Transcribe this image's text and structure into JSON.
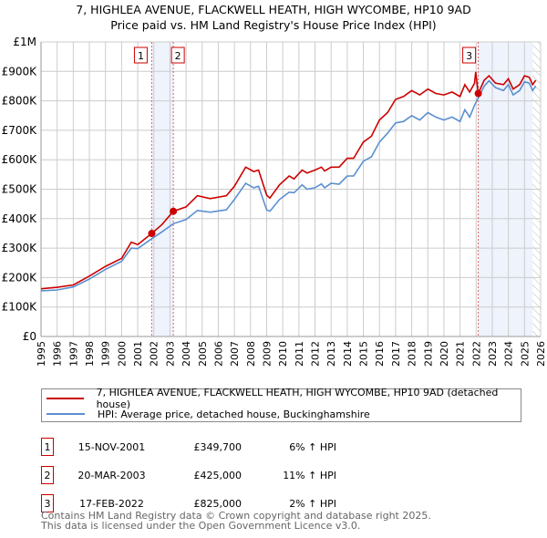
{
  "chart_data": {
    "type": "line",
    "title": "7, HIGHLEA AVENUE, FLACKWELL HEATH, HIGH WYCOMBE, HP10 9AD",
    "subtitle": "Price paid vs. HM Land Registry's House Price Index (HPI)",
    "xlim": [
      1995,
      2026
    ],
    "ylim": [
      0,
      1000000
    ],
    "x_ticks": [
      "1995",
      "1996",
      "1997",
      "1998",
      "1999",
      "2000",
      "2001",
      "2002",
      "2003",
      "2004",
      "2005",
      "2006",
      "2007",
      "2008",
      "2009",
      "2010",
      "2011",
      "2012",
      "2013",
      "2014",
      "2015",
      "2016",
      "2017",
      "2018",
      "2019",
      "2020",
      "2021",
      "2022",
      "2023",
      "2024",
      "2025",
      "2026"
    ],
    "y_ticks": [
      {
        "value": 0,
        "label": "£0"
      },
      {
        "value": 100000,
        "label": "£100K"
      },
      {
        "value": 200000,
        "label": "£200K"
      },
      {
        "value": 300000,
        "label": "£300K"
      },
      {
        "value": 400000,
        "label": "£400K"
      },
      {
        "value": 500000,
        "label": "£500K"
      },
      {
        "value": 600000,
        "label": "£600K"
      },
      {
        "value": 700000,
        "label": "£700K"
      },
      {
        "value": 800000,
        "label": "£800K"
      },
      {
        "value": 900000,
        "label": "£900K"
      },
      {
        "value": 1000000,
        "label": "£1M"
      }
    ],
    "grid": true,
    "series": [
      {
        "name": "7, HIGHLEA AVENUE, FLACKWELL HEATH, HIGH WYCOMBE, HP10 9AD (detached house)",
        "color": "#cc0000",
        "x": [
          1995,
          1996,
          1997,
          1998,
          1999,
          2000,
          2000.6,
          2001,
          2001.87,
          2002.5,
          2003.21,
          2004,
          2004.7,
          2005.5,
          2006.5,
          2007,
          2007.7,
          2008.2,
          2008.5,
          2009,
          2009.2,
          2009.8,
          2010.4,
          2010.7,
          2011.2,
          2011.5,
          2012,
          2012.4,
          2012.6,
          2013,
          2013.5,
          2014,
          2014.4,
          2015,
          2015.5,
          2016,
          2016.5,
          2017,
          2017.5,
          2018,
          2018.5,
          2019,
          2019.5,
          2020,
          2020.5,
          2021,
          2021.3,
          2021.6,
          2021.9,
          2021.97,
          2022.13,
          2022.5,
          2022.8,
          2023.2,
          2023.7,
          2024,
          2024.3,
          2024.7,
          2025,
          2025.3,
          2025.5,
          2025.7
        ],
        "y": [
          162000,
          167000,
          175000,
          205000,
          238000,
          265000,
          320000,
          312000,
          349700,
          380000,
          425000,
          440000,
          478000,
          468000,
          478000,
          510000,
          575000,
          560000,
          565000,
          480000,
          470000,
          515000,
          545000,
          535000,
          565000,
          555000,
          565000,
          575000,
          562000,
          575000,
          575000,
          605000,
          605000,
          660000,
          680000,
          735000,
          760000,
          805000,
          815000,
          835000,
          820000,
          840000,
          825000,
          820000,
          830000,
          815000,
          855000,
          830000,
          860000,
          898000,
          825000,
          870000,
          885000,
          860000,
          855000,
          875000,
          840000,
          855000,
          885000,
          880000,
          855000,
          870000
        ]
      },
      {
        "name": "HPI: Average price, detached house, Buckinghamshire",
        "color": "#5b8fd0",
        "x": [
          1995,
          1996,
          1997,
          1998,
          1999,
          2000,
          2000.6,
          2001,
          2001.87,
          2002.5,
          2003.21,
          2004,
          2004.7,
          2005.5,
          2006.5,
          2007,
          2007.7,
          2008.2,
          2008.5,
          2009,
          2009.2,
          2009.8,
          2010.4,
          2010.7,
          2011.2,
          2011.5,
          2012,
          2012.4,
          2012.6,
          2013,
          2013.5,
          2014,
          2014.4,
          2015,
          2015.5,
          2016,
          2016.5,
          2017,
          2017.5,
          2018,
          2018.5,
          2019,
          2019.5,
          2020,
          2020.5,
          2021,
          2021.3,
          2021.6,
          2021.9,
          2022.13,
          2022.5,
          2022.8,
          2023.2,
          2023.7,
          2024,
          2024.3,
          2024.7,
          2025,
          2025.3,
          2025.5,
          2025.7
        ],
        "y": [
          155000,
          158000,
          168000,
          195000,
          228000,
          255000,
          300000,
          298000,
          332000,
          355000,
          383000,
          397000,
          428000,
          422000,
          430000,
          465000,
          520000,
          505000,
          510000,
          430000,
          425000,
          465000,
          490000,
          488000,
          515000,
          500000,
          505000,
          518000,
          505000,
          520000,
          517000,
          545000,
          545000,
          595000,
          610000,
          660000,
          690000,
          725000,
          730000,
          750000,
          735000,
          760000,
          745000,
          735000,
          745000,
          730000,
          770000,
          745000,
          785000,
          810000,
          850000,
          868000,
          845000,
          835000,
          855000,
          820000,
          835000,
          865000,
          860000,
          835000,
          850000
        ]
      }
    ],
    "sales": [
      {
        "label": "1",
        "date": "15-NOV-2001",
        "x": 2001.87,
        "price": "£349,700",
        "value": 349700,
        "hpi": "6% ↑ HPI"
      },
      {
        "label": "2",
        "date": "20-MAR-2003",
        "x": 2003.21,
        "price": "£425,000",
        "value": 425000,
        "hpi": "11% ↑ HPI"
      },
      {
        "label": "3",
        "date": "17-FEB-2022",
        "x": 2022.13,
        "price": "£825,000",
        "value": 825000,
        "hpi": "2% ↑ HPI"
      }
    ],
    "shaded_ranges": [
      [
        2001.87,
        2003.21
      ],
      [
        2022.13,
        2025.5
      ]
    ],
    "forecast_hatch_start": 2025.5,
    "legend_position": "below"
  },
  "footer": {
    "line1": "Contains HM Land Registry data © Crown copyright and database right 2025.",
    "line2": "This data is licensed under the Open Government Licence v3.0."
  }
}
